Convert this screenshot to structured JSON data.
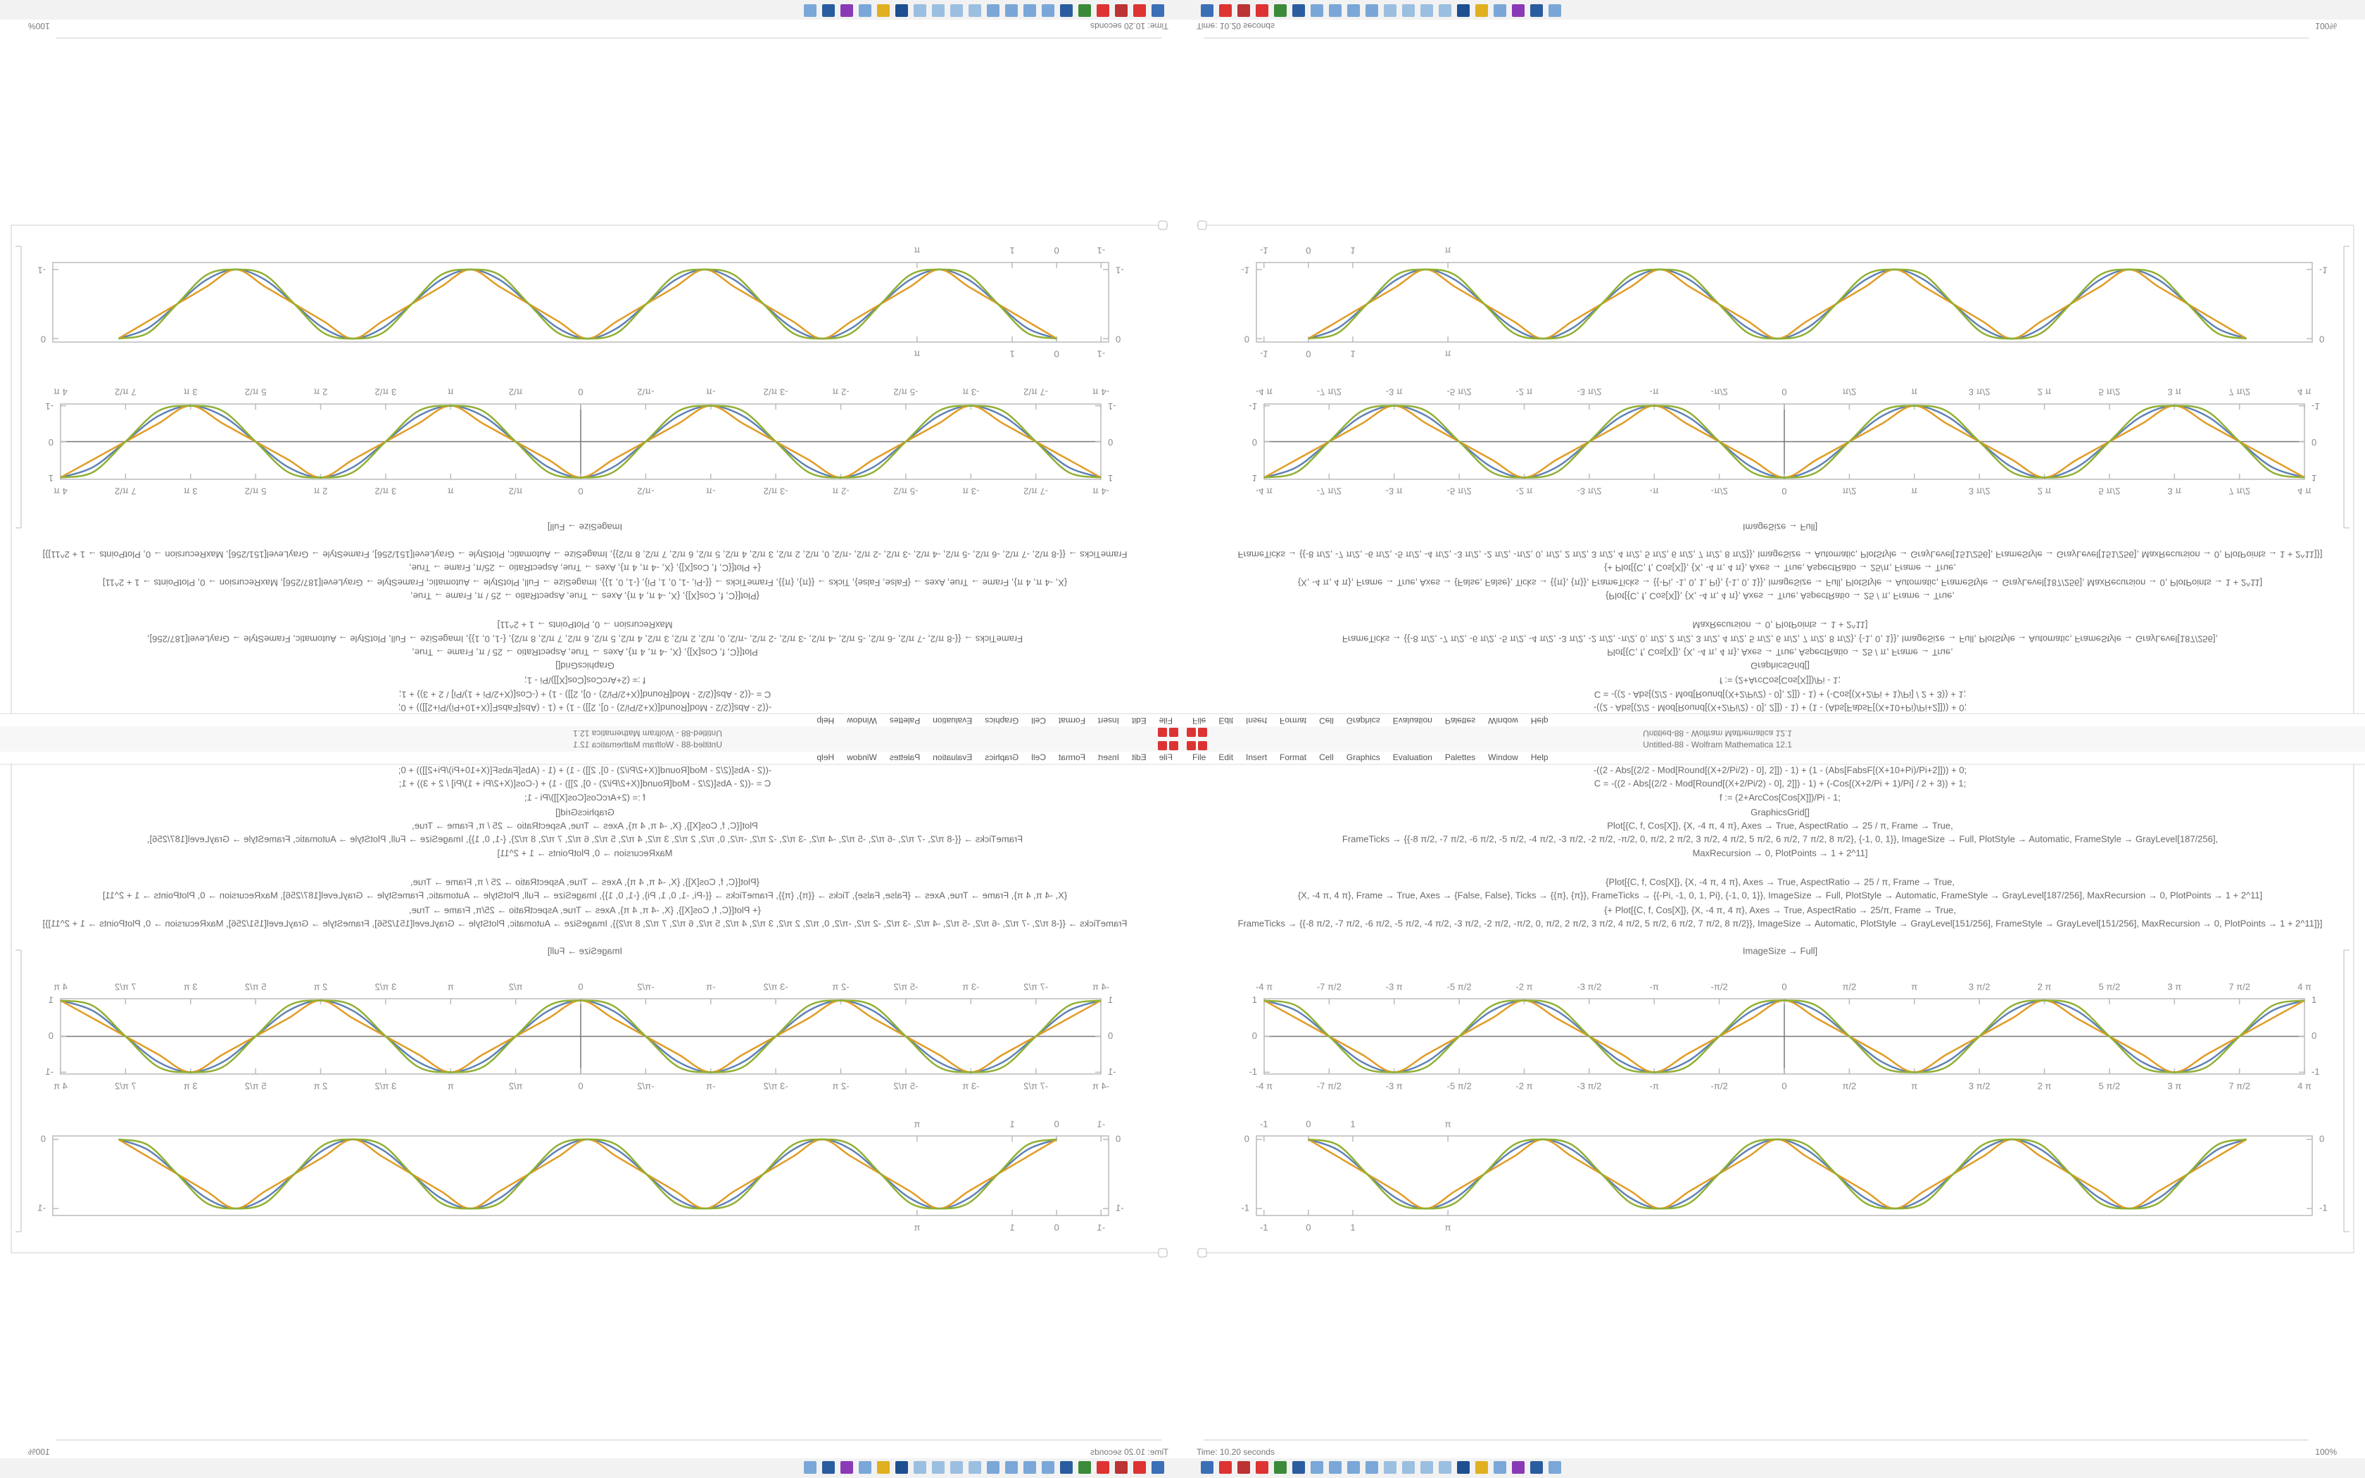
{
  "window": {
    "title": "Untitled-88 - Wolfram Mathematica 12.1",
    "menu": [
      "File",
      "Edit",
      "Insert",
      "Format",
      "Cell",
      "Graphics",
      "Evaluation",
      "Palettes",
      "Window",
      "Help"
    ]
  },
  "notebook": {
    "input_lines": [
      "-((2 - Abs[(2/2 - Mod[Round[(X+2/Pi/2) - 0], 2]]) - 1) + (1 - (Abs[FabsF[(X+10+Pi)/Pi+2]])) + 0;",
      "C = -((2 - Abs[(2/2 - Mod[Round[(X+2/Pi/2) - 0], 2]]) - 1) + (-Cos[(X+2/Pi + 1)/Pi] / 2 + 3)) + 1;",
      "f := (2+ArcCos[Cos[X]])/Pi - 1;",
      "GraphicsGrid[]",
      "Plot[{C, f, Cos[X]}, {X, -4 π, 4 π}, Axes → True, AspectRatio → 25 / π, Frame → True,",
      "FrameTicks → {{-8 π/2, -7 π/2, -6 π/2, -5 π/2, -4 π/2, -3 π/2, -2 π/2, -π/2, 0, π/2, 2 π/2, 3 π/2, 4 π/2, 5 π/2, 6 π/2, 7 π/2, 8 π/2}, {-1, 0, 1}}, ImageSize → Full, PlotStyle → Automatic, FrameStyle → GrayLevel[187/256],",
      "MaxRecursion → 0, PlotPoints → 1 + 2^11]",
      "{Plot[{C, f, Cos[X]}, {X, -4 π, 4 π}, Axes → True, AspectRatio → 25 / π, Frame → True,",
      "{X, -4 π, 4 π}, Frame → True, Axes → {False, False}, Ticks → {{π}, {π}}, FrameTicks → {{-Pi, -1, 0, 1, Pi}, {-1, 0, 1}}, ImageSize → Full, PlotStyle → Automatic, FrameStyle → GrayLevel[187/256], MaxRecursion → 0, PlotPoints → 1 + 2^11]",
      "{+ Plot[{C, f, Cos[X]}, {X, -4 π, 4 π}, Axes → True, AspectRatio → 25/π, Frame → True,",
      "FrameTicks → {{-8 π/2, -7 π/2, -6 π/2, -5 π/2, -4 π/2, -3 π/2, -2 π/2, -π/2, 0, π/2, 2 π/2, 3 π/2, 4 π/2, 5 π/2, 6 π/2, 7 π/2, 8 π/2}}, ImageSize → Automatic, PlotStyle → GrayLevel[151/256], FrameStyle → GrayLevel[151/256], MaxRecursion → 0, PlotPoints → 1 + 2^11]}]",
      "ImageSize → Full]"
    ]
  },
  "status_bar": {
    "text": "Time: 10.20 seconds",
    "zoom": "100%"
  },
  "chart_data": [
    {
      "type": "line",
      "x": [
        -12.566,
        -11.781,
        -10.996,
        -10.21,
        -9.425,
        -8.639,
        -7.854,
        -7.069,
        -6.283,
        -5.498,
        -4.712,
        -3.927,
        -3.142,
        -2.356,
        -1.571,
        -0.785,
        0,
        0.785,
        1.571,
        2.356,
        3.142,
        3.927,
        4.712,
        5.498,
        6.283,
        7.069,
        7.854,
        8.639,
        9.425,
        10.21,
        10.996,
        11.781,
        12.566
      ],
      "series": [
        {
          "color": "#5e81b5",
          "values": [
            1,
            0.71,
            0,
            -0.71,
            -1,
            -0.71,
            0,
            0.71,
            1,
            0.71,
            0,
            -0.71,
            -1,
            -0.71,
            0,
            0.71,
            1,
            0.71,
            0,
            -0.71,
            -1,
            -0.71,
            0,
            0.71,
            1,
            0.71,
            0,
            -0.71,
            -1,
            -0.71,
            0,
            0.71,
            1
          ]
        },
        {
          "color": "#e19c24",
          "values": [
            1,
            0.5,
            0,
            -0.5,
            -1,
            -0.5,
            0,
            0.5,
            1,
            0.5,
            0,
            -0.5,
            -1,
            -0.5,
            0,
            0.5,
            1,
            0.5,
            0,
            -0.5,
            -1,
            -0.5,
            0,
            0.5,
            1,
            0.5,
            0,
            -0.5,
            -1,
            -0.5,
            0,
            0.5,
            1
          ]
        },
        {
          "color": "#8fb032",
          "values": [
            1,
            0.85,
            0,
            -0.85,
            -1,
            -0.85,
            0,
            0.85,
            1,
            0.85,
            0,
            -0.85,
            -1,
            -0.85,
            0,
            0.85,
            1,
            0.85,
            0,
            -0.85,
            -1,
            -0.85,
            0,
            0.85,
            1,
            0.85,
            0,
            -0.85,
            -1,
            -0.85,
            0,
            0.85,
            1
          ]
        }
      ],
      "xlim": [
        -12.566,
        12.566
      ],
      "ylim": [
        -1.05,
        1.05
      ],
      "xticks": [
        {
          "value": -12.566,
          "label": "-4 π"
        },
        {
          "value": -10.996,
          "label": "-7 π/2"
        },
        {
          "value": -9.425,
          "label": "-3 π"
        },
        {
          "value": -7.854,
          "label": "-5 π/2"
        },
        {
          "value": -6.283,
          "label": "-2 π"
        },
        {
          "value": -4.712,
          "label": "-3 π/2"
        },
        {
          "value": -3.142,
          "label": "-π"
        },
        {
          "value": -1.571,
          "label": "-π/2"
        },
        0,
        {
          "value": 1.571,
          "label": "π/2"
        },
        {
          "value": 3.142,
          "label": "π"
        },
        {
          "value": 4.712,
          "label": "3 π/2"
        },
        {
          "value": 6.283,
          "label": "2 π"
        },
        {
          "value": 7.854,
          "label": "5 π/2"
        },
        {
          "value": 9.425,
          "label": "3 π"
        },
        {
          "value": 10.996,
          "label": "7 π/2"
        },
        {
          "value": 12.566,
          "label": "4 π"
        }
      ],
      "yticks": [
        -1,
        0,
        1
      ],
      "axes": true,
      "frame_color": "#bbbbbb"
    },
    {
      "type": "line",
      "x": [
        0,
        0.66,
        1.32,
        1.98,
        2.64,
        3.3,
        3.96,
        4.62,
        5.28,
        5.94,
        6.6,
        7.26,
        7.92,
        8.58,
        9.24,
        9.9,
        10.56,
        11.22,
        11.88,
        12.54,
        13.2,
        13.86,
        14.52,
        15.18,
        15.84,
        16.5,
        17.16,
        17.82,
        18.48,
        19.14,
        19.8,
        20.46,
        21.12
      ],
      "series": [
        {
          "color": "#5e81b5",
          "values": [
            0,
            -0.15,
            -0.5,
            -0.85,
            -1,
            -0.85,
            -0.5,
            -0.15,
            0,
            -0.15,
            -0.5,
            -0.85,
            -1,
            -0.85,
            -0.5,
            -0.15,
            0,
            -0.15,
            -0.5,
            -0.85,
            -1,
            -0.85,
            -0.5,
            -0.15,
            0,
            -0.15,
            -0.5,
            -0.85,
            -1,
            -0.85,
            -0.5,
            -0.15,
            0
          ]
        },
        {
          "color": "#e19c24",
          "values": [
            0,
            -0.25,
            -0.5,
            -0.75,
            -1,
            -0.75,
            -0.5,
            -0.25,
            0,
            -0.25,
            -0.5,
            -0.75,
            -1,
            -0.75,
            -0.5,
            -0.25,
            0,
            -0.25,
            -0.5,
            -0.75,
            -1,
            -0.75,
            -0.5,
            -0.25,
            0,
            -0.25,
            -0.5,
            -0.75,
            -1,
            -0.75,
            -0.5,
            -0.25,
            0
          ]
        },
        {
          "color": "#8fb032",
          "values": [
            0,
            -0.08,
            -0.5,
            -0.92,
            -1,
            -0.92,
            -0.5,
            -0.08,
            0,
            -0.08,
            -0.5,
            -0.92,
            -1,
            -0.92,
            -0.5,
            -0.08,
            0,
            -0.08,
            -0.5,
            -0.92,
            -1,
            -0.92,
            -0.5,
            -0.08,
            0,
            -0.08,
            -0.5,
            -0.92,
            -1,
            -0.92,
            -0.5,
            -0.08,
            0
          ]
        }
      ],
      "xlim": [
        -1.17,
        22.6
      ],
      "ylim": [
        -1.1,
        0.05
      ],
      "xticks": [
        -1,
        0,
        1,
        {
          "value": 3.142,
          "label": "π"
        }
      ],
      "yticks": [
        -1,
        0
      ],
      "axes": false,
      "frame_color": "#bbbbbb"
    }
  ]
}
